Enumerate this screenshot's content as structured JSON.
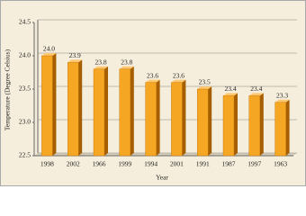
{
  "chart_data": {
    "type": "bar3d",
    "x_label": "Year",
    "y_label": "Temperature (Degree Celsius)",
    "categories": [
      "1998",
      "2002",
      "1966",
      "1999",
      "1994",
      "2001",
      "1991",
      "1987",
      "1997",
      "1963"
    ],
    "values": [
      24.0,
      23.9,
      23.8,
      23.8,
      23.6,
      23.6,
      23.5,
      23.4,
      23.4,
      23.3
    ],
    "value_labels": [
      "24.0",
      "23.9",
      "23.8",
      "23.8",
      "23.6",
      "23.6",
      "23.5",
      "23.4",
      "23.4",
      "23.3"
    ],
    "color": "#f5a623",
    "ylim": [
      22.5,
      24.5
    ],
    "yticks": [
      22.5,
      {
        "value": 23,
        "label": "23.0"
      },
      23.5,
      {
        "value": 24,
        "label": "24.0"
      },
      24.5
    ],
    "grid": true
  }
}
